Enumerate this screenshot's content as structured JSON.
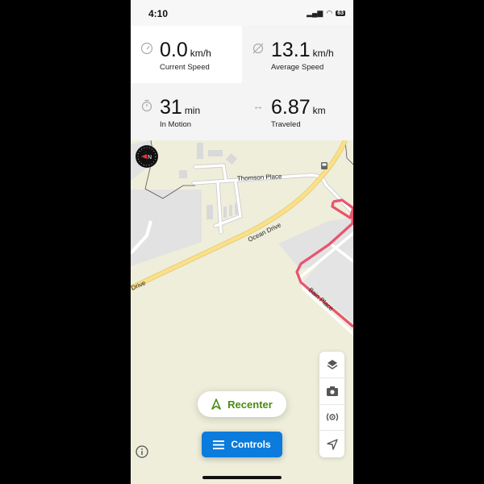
{
  "status_bar": {
    "time": "4:10",
    "battery": "63"
  },
  "stats": [
    {
      "icon": "speedometer-icon",
      "value": "0.0",
      "unit": "km/h",
      "label": "Current Speed"
    },
    {
      "icon": "average-icon",
      "value": "13.1",
      "unit": "km/h",
      "label": "Average Speed"
    },
    {
      "icon": "stopwatch-icon",
      "value": "31",
      "unit": "min",
      "label": "In Motion"
    },
    {
      "icon": "distance-arrows-icon",
      "value": "6.87",
      "unit": "km",
      "label": "Traveled"
    }
  ],
  "map": {
    "streets": {
      "thomson": "Thomson Place",
      "ocean": "Ocean Drive",
      "ocean2": "Drive",
      "bain": "Bain Place"
    },
    "route_color": "#e8546f",
    "main_road_color": "#fbe08a"
  },
  "buttons": {
    "recenter": "Recenter",
    "controls": "Controls"
  },
  "colors": {
    "accent_green": "#4a8a13",
    "controls_blue": "#0b7bdc"
  }
}
